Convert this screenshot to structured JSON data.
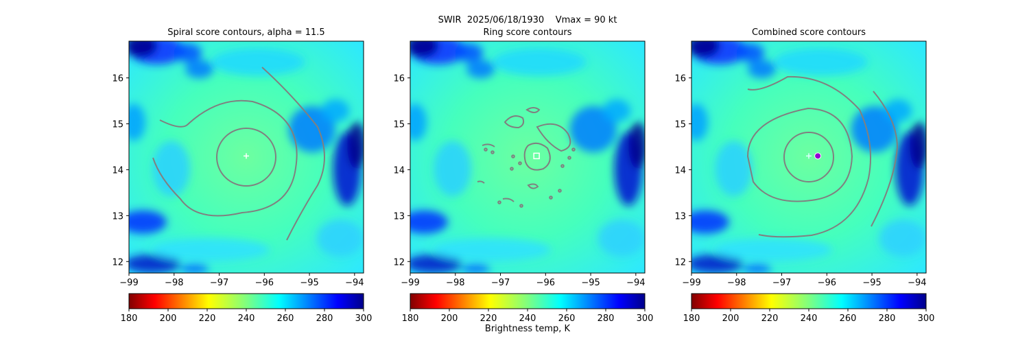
{
  "figure": {
    "suptitle": "SWIR  2025/06/18/1930    Vmax = 90 kt",
    "colorbar_label": "Brightness temp, K",
    "colorbar_ticks": [
      "180",
      "200",
      "220",
      "240",
      "260",
      "280",
      "300"
    ],
    "colormap": "jet_r",
    "contour_color": "#808080",
    "marker_color_center": "#ffffff",
    "marker_color_best": "#9400d3"
  },
  "chart_data": [
    {
      "type": "heatmap",
      "title": "Spiral score contours, alpha = 11.5",
      "xlim": [
        -99,
        -93.8
      ],
      "ylim": [
        11.75,
        16.8
      ],
      "xticks": [
        "−99",
        "−98",
        "−97",
        "−96",
        "−95",
        "−94"
      ],
      "yticks": [
        "12",
        "13",
        "14",
        "15",
        "16"
      ],
      "clim": [
        180,
        300
      ],
      "background_tb_K": 245,
      "cold_clouds_tb_K": 285,
      "first_guess_center": {
        "lon": -96.4,
        "lat": 14.3
      },
      "annotations": [
        "white plus marker at first-guess center",
        "gray score contours"
      ]
    },
    {
      "type": "heatmap",
      "title": "Ring score contours",
      "xlim": [
        -99,
        -93.8
      ],
      "ylim": [
        11.75,
        16.8
      ],
      "xticks": [
        "−99",
        "−98",
        "−97",
        "−96",
        "−95",
        "−94"
      ],
      "yticks": [
        "12",
        "13",
        "14",
        "15",
        "16"
      ],
      "clim": [
        180,
        300
      ],
      "background_tb_K": 245,
      "cold_clouds_tb_K": 285,
      "ring_center": {
        "lon": -96.2,
        "lat": 14.3
      },
      "annotations": [
        "white square marker at ring center",
        "gray score contours"
      ]
    },
    {
      "type": "heatmap",
      "title": "Combined score contours",
      "xlim": [
        -99,
        -93.8
      ],
      "ylim": [
        11.75,
        16.8
      ],
      "xticks": [
        "−99",
        "−98",
        "−97",
        "−96",
        "−95",
        "−94"
      ],
      "yticks": [
        "12",
        "13",
        "14",
        "15",
        "16"
      ],
      "clim": [
        180,
        300
      ],
      "background_tb_K": 245,
      "cold_clouds_tb_K": 285,
      "first_guess_center": {
        "lon": -96.4,
        "lat": 14.3
      },
      "best_center": {
        "lon": -96.2,
        "lat": 14.3
      },
      "annotations": [
        "light plus marker at first-guess center",
        "purple circle marker at combined best center",
        "gray score contours"
      ]
    }
  ]
}
